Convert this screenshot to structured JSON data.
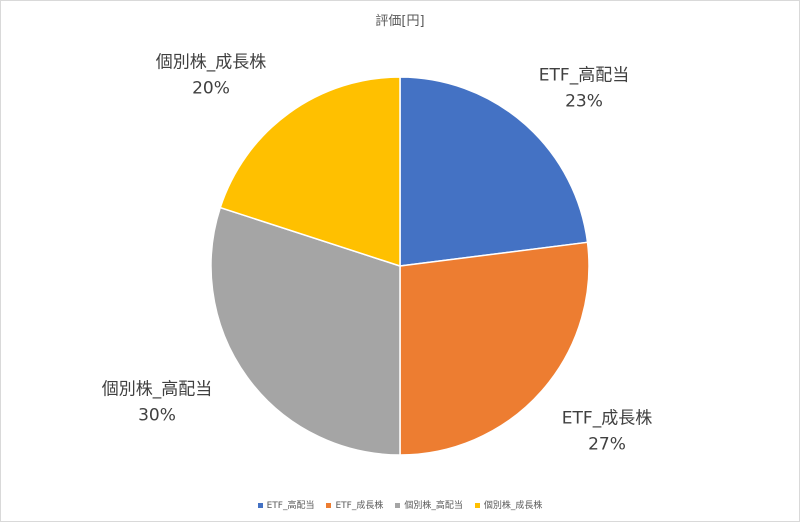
{
  "chart_data": {
    "type": "pie",
    "title": "評価[円]",
    "categories": [
      "ETF_高配当",
      "ETF_成長株",
      "個別株_高配当",
      "個別株_成長株"
    ],
    "values": [
      23,
      27,
      30,
      20
    ],
    "data_labels": [
      "23%",
      "27%",
      "30%",
      "20%"
    ],
    "colors": [
      "#4472C4",
      "#ED7D31",
      "#A5A5A5",
      "#FFC000"
    ],
    "legend": "bottom"
  }
}
